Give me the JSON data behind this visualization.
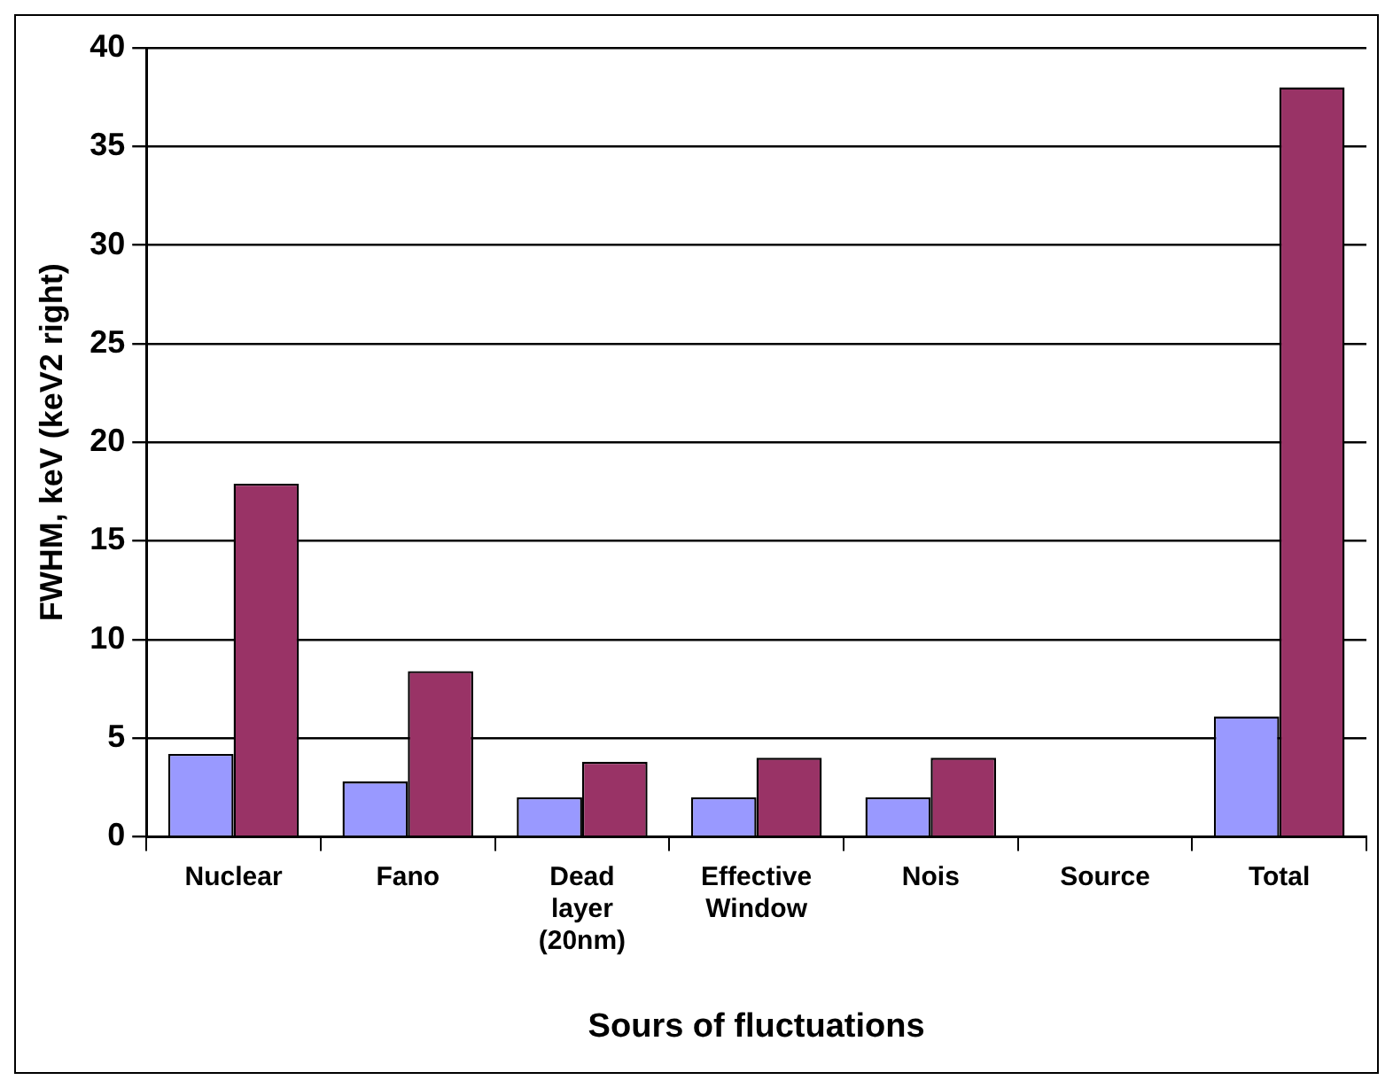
{
  "chart_data": {
    "type": "bar",
    "xlabel": "Sours of fluctuations",
    "ylabel": "FWHM, keV (keV2 right)",
    "categories": [
      "Nuclear",
      "Fano",
      "Dead layer (20nm)",
      "Effective Window",
      "Nois",
      "Source",
      "Total"
    ],
    "series": [
      {
        "color": "#9999ff",
        "values": [
          4.2,
          2.8,
          2.0,
          2.0,
          2.0,
          null,
          6.1
        ]
      },
      {
        "color": "#993366",
        "values": [
          17.9,
          8.4,
          3.8,
          4.0,
          4.0,
          null,
          38.0
        ]
      }
    ],
    "ylim": [
      0,
      40
    ],
    "yticks": [
      0,
      5,
      10,
      15,
      20,
      25,
      30,
      35,
      40
    ],
    "grid": "y",
    "legend": false
  }
}
